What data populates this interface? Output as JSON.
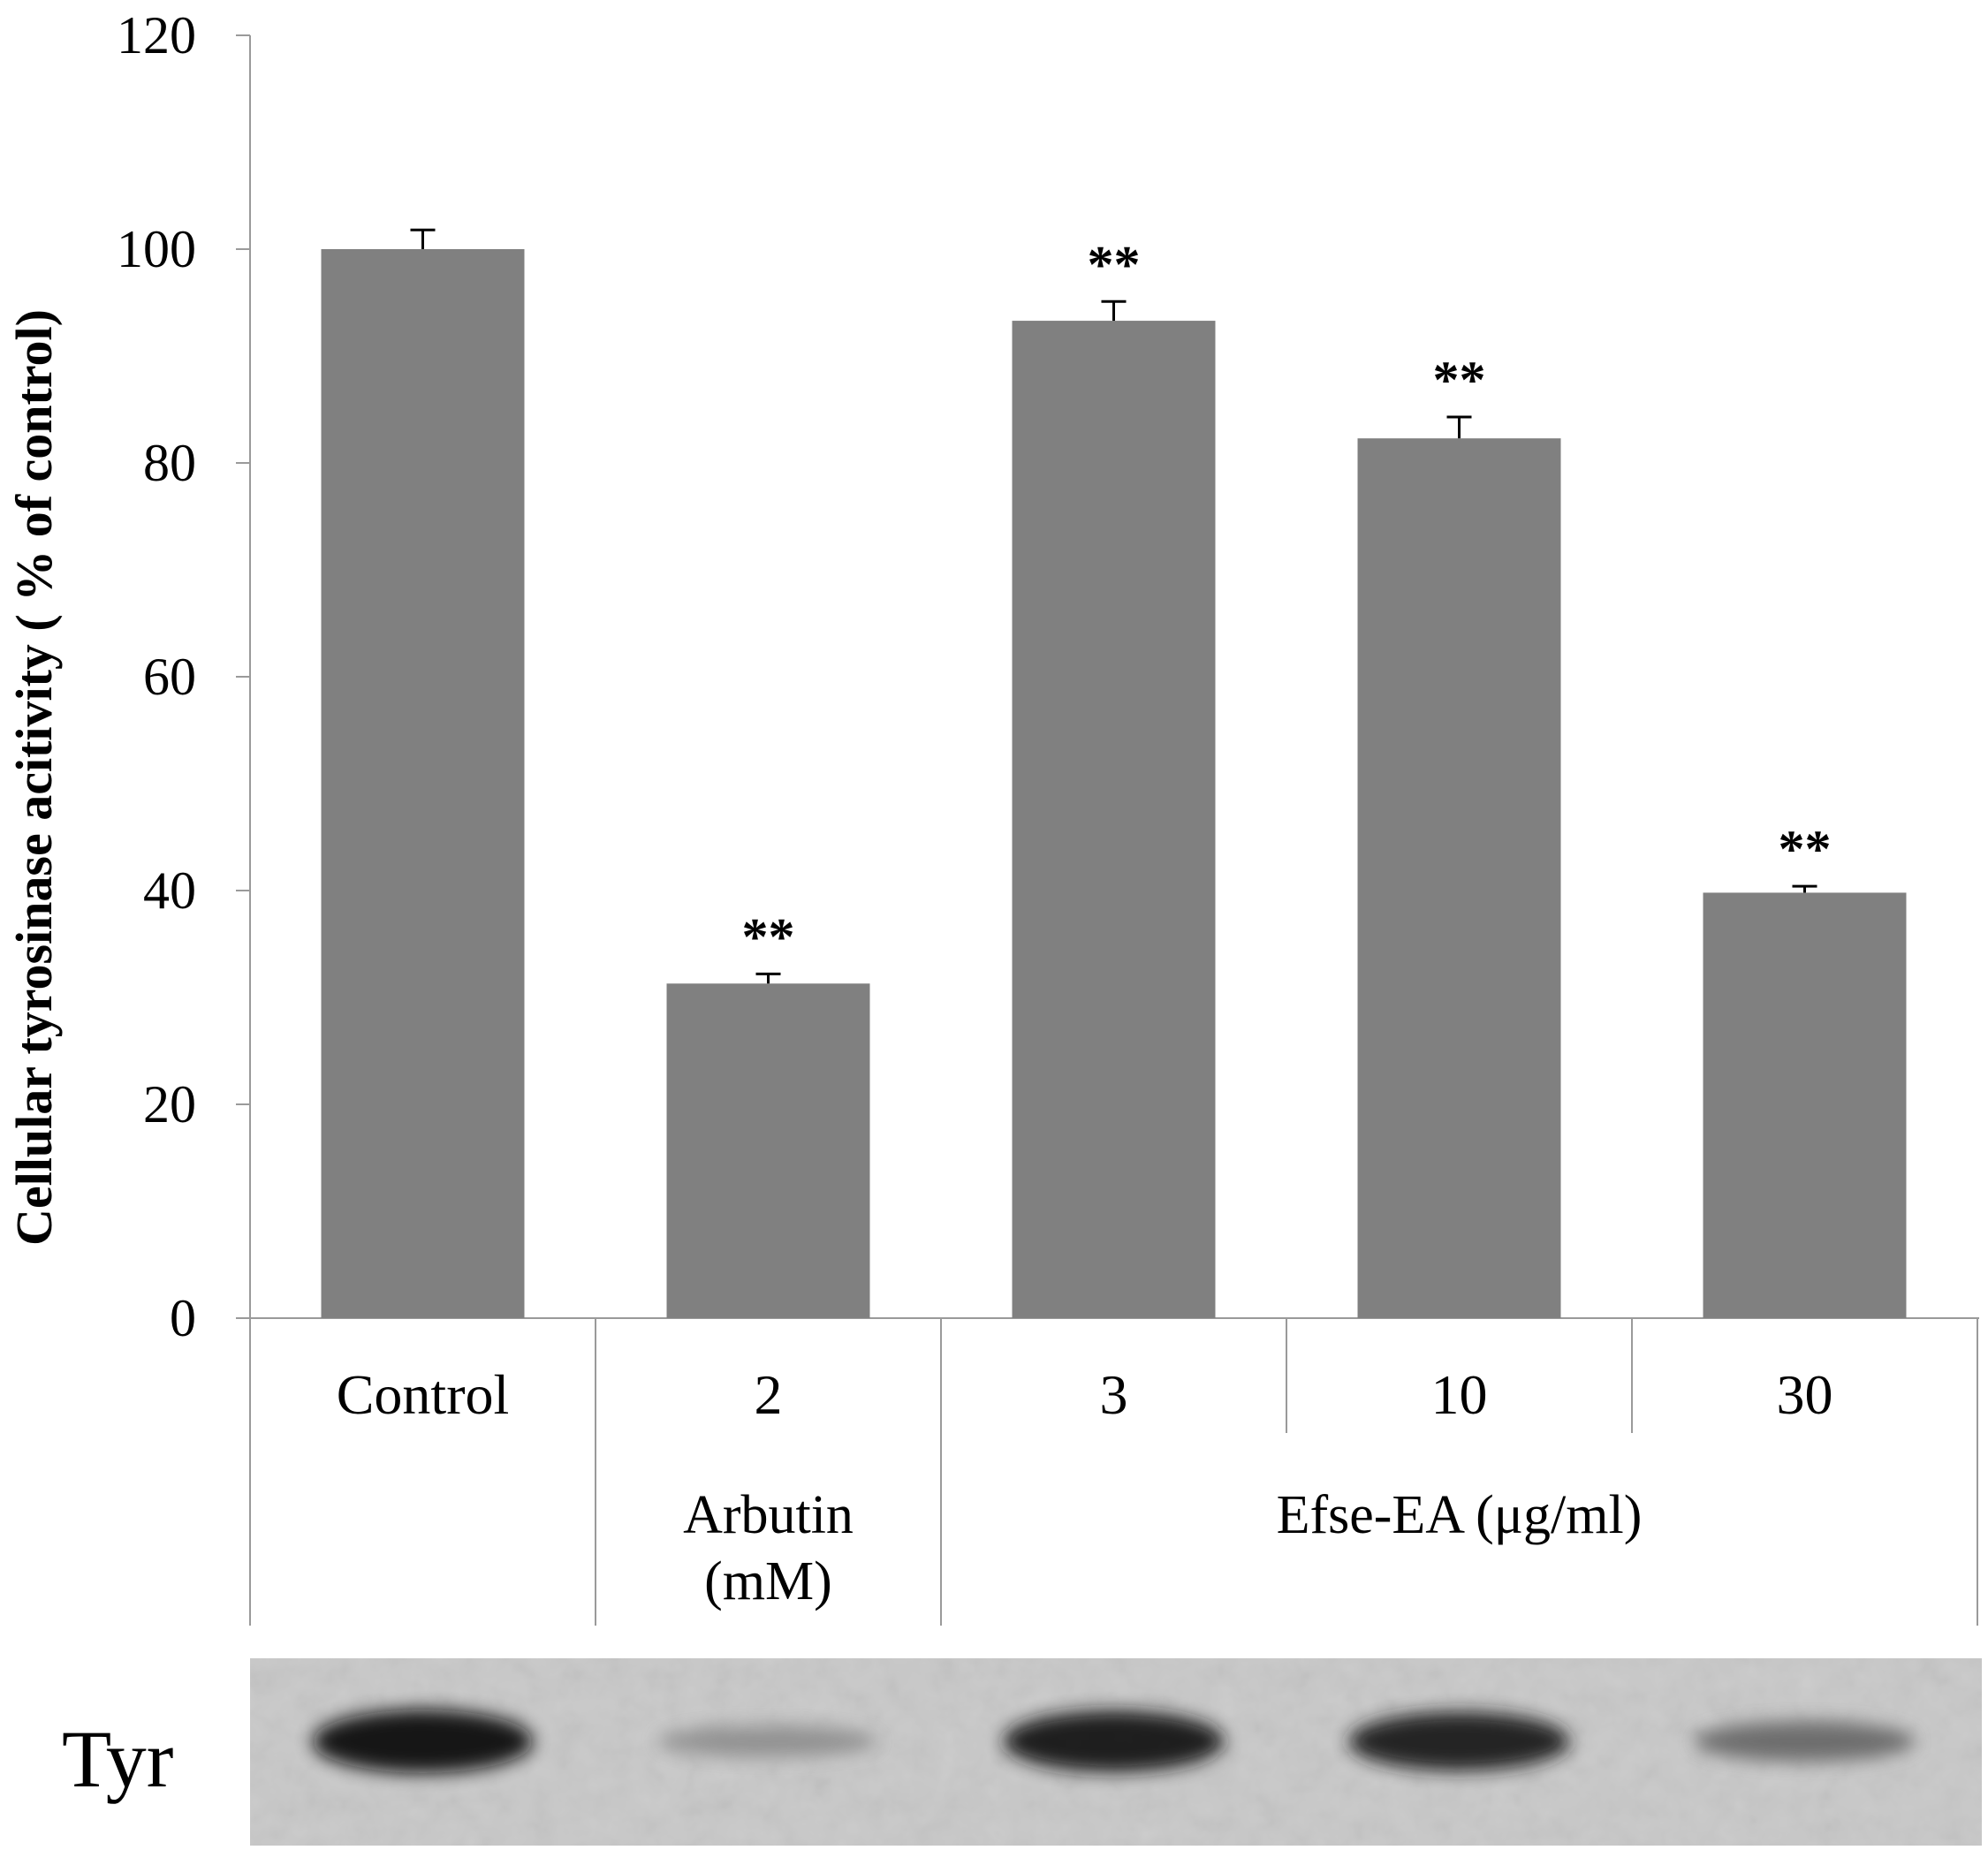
{
  "chart_data": {
    "type": "bar",
    "title": "",
    "ylabel": "Cellular tyrosinase acitivity ( % of control)",
    "ylim": [
      0,
      120
    ],
    "yticks": [
      "0",
      "20",
      "40",
      "60",
      "80",
      "100",
      "120"
    ],
    "grid": false,
    "categories": [
      "Control",
      "2",
      "3",
      "10",
      "30"
    ],
    "values": [
      100,
      31.3,
      93.3,
      82.3,
      39.8
    ],
    "errors": [
      1.8,
      0.9,
      1.8,
      2.0,
      0.6
    ],
    "significance": [
      "",
      "**",
      "**",
      "**",
      "**"
    ],
    "groups": [
      {
        "label": "",
        "categories": [
          "Control"
        ]
      },
      {
        "label": "Arbutin\n(mM)",
        "categories": [
          "2"
        ]
      },
      {
        "label": "Efse-EA (μg/ml)",
        "categories": [
          "3",
          "10",
          "30"
        ]
      }
    ],
    "bar_color": "#808080",
    "blot": {
      "label": "Tyr",
      "band_intensities": [
        1.0,
        0.3,
        0.95,
        0.9,
        0.5
      ]
    }
  }
}
